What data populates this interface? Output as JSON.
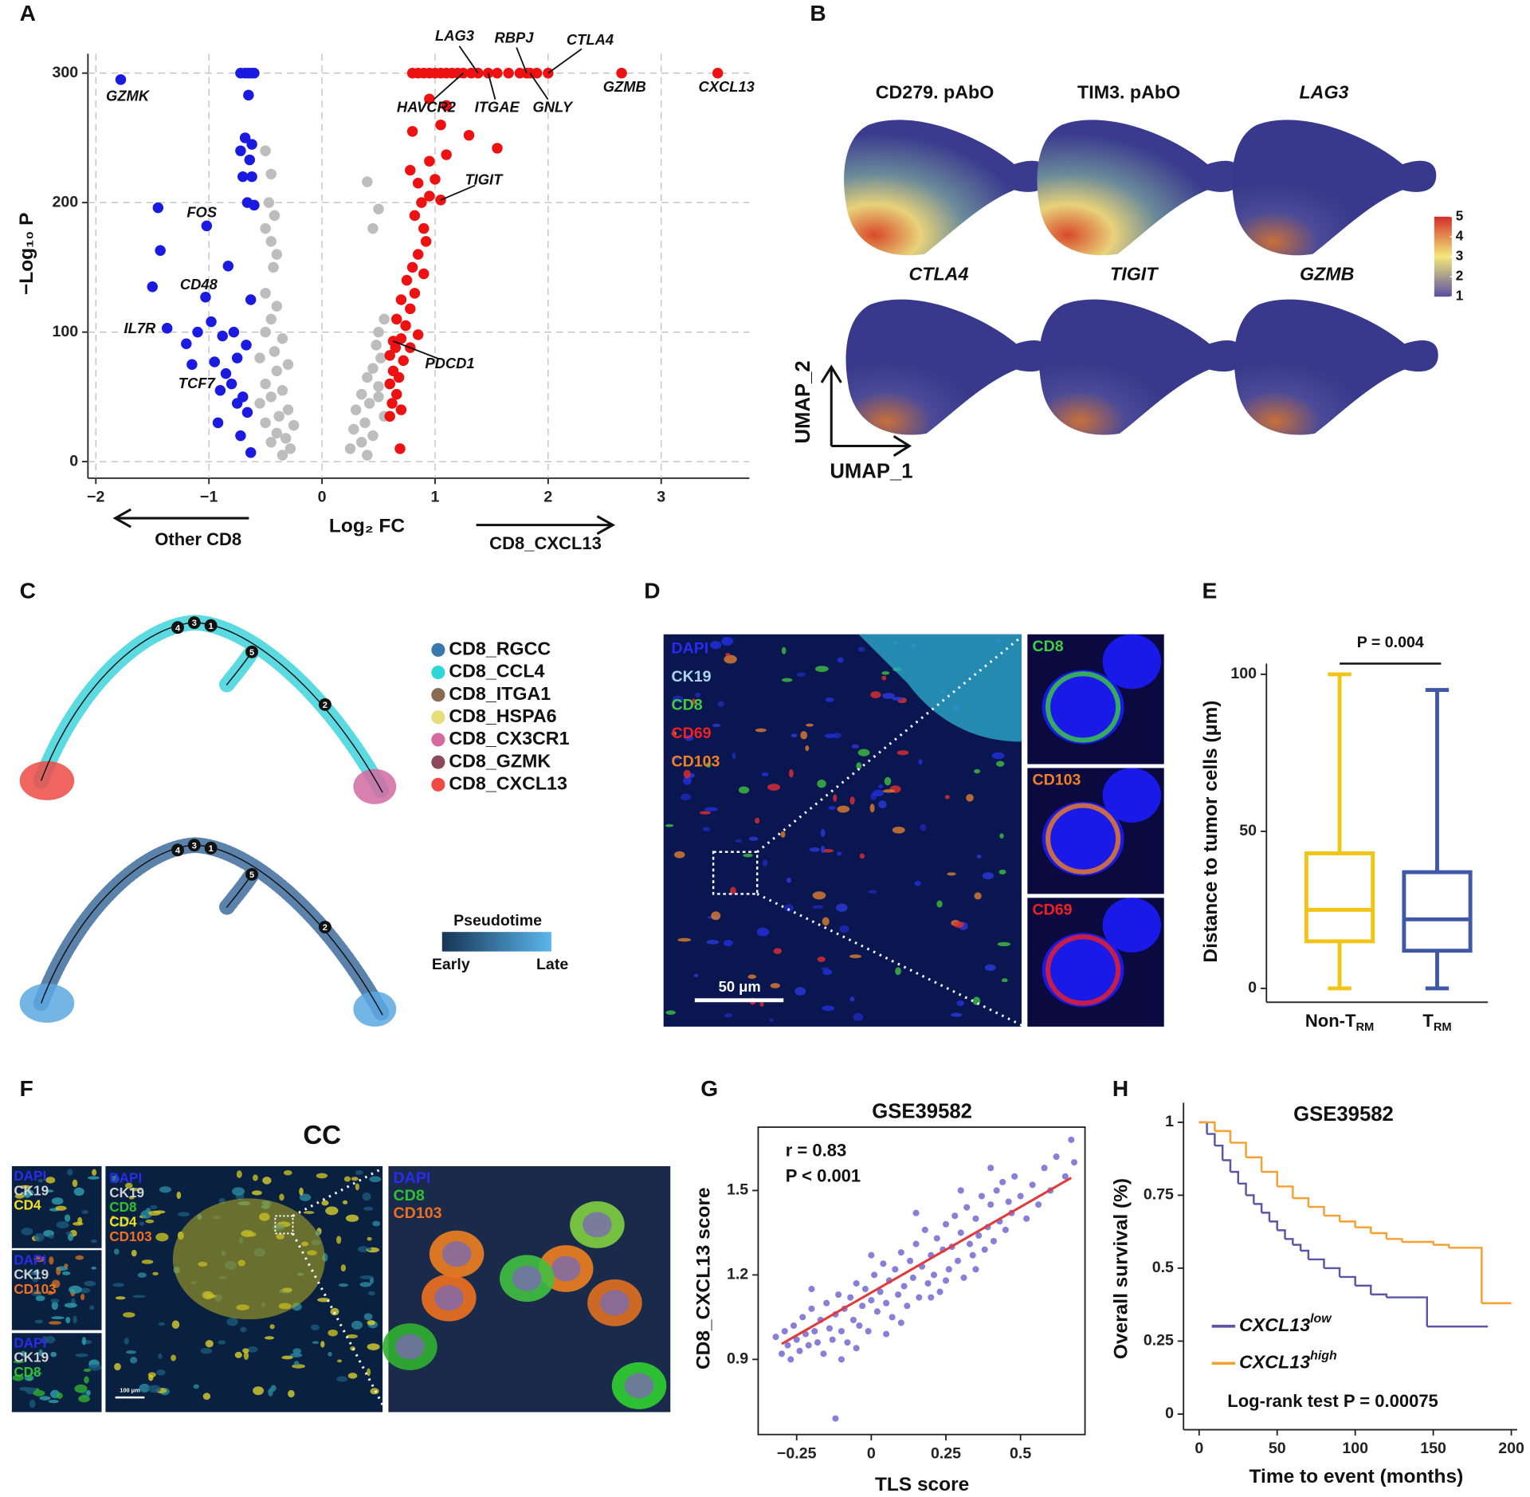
{
  "panel_labels": [
    "A",
    "B",
    "C",
    "D",
    "E",
    "F",
    "G",
    "H"
  ],
  "umap": {
    "titles": [
      "CD279. pAbO",
      "TIM3. pAbO",
      "LAG3",
      "CTLA4",
      "TIGIT",
      "GZMB"
    ],
    "colorbar_ticks": [
      1,
      2,
      3,
      4,
      5
    ],
    "colorbar_colors": [
      "#5a4fa0",
      "#f4e87a",
      "#d0302a"
    ],
    "xlabel": "UMAP_1",
    "ylabel": "UMAP_2"
  },
  "trajectory": {
    "legend": [
      {
        "name": "CD8_RGCC",
        "color": "#3a78b0"
      },
      {
        "name": "CD8_CCL4",
        "color": "#2fd6d6"
      },
      {
        "name": "CD8_ITGA1",
        "color": "#8a6a50"
      },
      {
        "name": "CD8_HSPA6",
        "color": "#e6dc78"
      },
      {
        "name": "CD8_CX3CR1",
        "color": "#d46aa0"
      },
      {
        "name": "CD8_GZMK",
        "color": "#8a4a5a"
      },
      {
        "name": "CD8_CXCL13",
        "color": "#ef4a44"
      }
    ],
    "nodes": [
      1,
      2,
      3,
      4,
      5
    ],
    "pseudotime_title": "Pseudotime",
    "pseudotime_low": "Early",
    "pseudotime_high": "Late",
    "pseudotime_colors": [
      "#173454",
      "#5ab6ec"
    ]
  },
  "microscopy_d": {
    "channels": [
      {
        "name": "DAPI",
        "color": "#2a2af0"
      },
      {
        "name": "CK19",
        "color": "#a8d8e8"
      },
      {
        "name": "CD8",
        "color": "#3fce3f"
      },
      {
        "name": "CD69",
        "color": "#f02020"
      },
      {
        "name": "CD103",
        "color": "#f08020"
      }
    ],
    "scale_bar": "50 μm",
    "insets": [
      {
        "name": "CD8",
        "color": "#3fce3f"
      },
      {
        "name": "CD103",
        "color": "#f08020"
      },
      {
        "name": "CD69",
        "color": "#f02020"
      }
    ]
  },
  "microscopy_f": {
    "title": "CC",
    "small_panels": [
      [
        {
          "name": "DAPI",
          "color": "#2a2af0"
        },
        {
          "name": "CK19",
          "color": "#d0d0d0"
        },
        {
          "name": "CD4",
          "color": "#f0e020"
        }
      ],
      [
        {
          "name": "DAPI",
          "color": "#2a2af0"
        },
        {
          "name": "CK19",
          "color": "#d0d0d0"
        },
        {
          "name": "CD103",
          "color": "#f07020"
        }
      ],
      [
        {
          "name": "DAPI",
          "color": "#2a2af0"
        },
        {
          "name": "CK19",
          "color": "#d0d0d0"
        },
        {
          "name": "CD8",
          "color": "#30c030"
        }
      ]
    ],
    "main_channels": [
      {
        "name": "DAPI",
        "color": "#2a2af0"
      },
      {
        "name": "CK19",
        "color": "#d0d0d0"
      },
      {
        "name": "CD8",
        "color": "#30c030"
      },
      {
        "name": "CD4",
        "color": "#f0e020"
      },
      {
        "name": "CD103",
        "color": "#f07020"
      }
    ],
    "zoom_channels": [
      {
        "name": "DAPI",
        "color": "#2a2af0"
      },
      {
        "name": "CD8",
        "color": "#30c030"
      },
      {
        "name": "CD103",
        "color": "#f07020"
      }
    ],
    "scale_bar": "100 μm"
  },
  "chart_data": [
    {
      "type": "scatter",
      "xlabel": "Log₂ FC",
      "ylabel": "−Log₁₀ P",
      "arrow_labels": [
        "Other CD8",
        "CD8_CXCL13"
      ],
      "xlim": [
        -2.07,
        3.78
      ],
      "ylim": [
        -12.8,
        315
      ],
      "xticks": [
        {
          "value": -2,
          "label": "−2"
        },
        {
          "value": -1,
          "label": "−1"
        },
        0,
        1,
        2,
        3
      ],
      "yticks": [
        0,
        100,
        200,
        300
      ],
      "grid": true,
      "series": [
        {
          "color": "#1a1ae0",
          "x": [
            -1.78,
            -0.72,
            -0.68,
            -0.65,
            -0.62,
            -0.6,
            -0.65,
            -0.68,
            -0.62,
            -0.72,
            -0.64,
            -0.7,
            -0.62,
            -0.66,
            -0.6,
            -1.45,
            -1.02,
            -1.43,
            -0.83,
            -1.5,
            -1.03,
            -0.63,
            -0.98,
            -1.37,
            -1.1,
            -0.78,
            -0.88,
            -1.2,
            -0.67,
            -0.75,
            -0.95,
            -1.15,
            -0.85,
            -0.8,
            -0.9,
            -0.7,
            -0.75,
            -0.66,
            -0.92,
            -0.72,
            -0.63
          ],
          "values": [
            295,
            300,
            300,
            300,
            300,
            300,
            283,
            250,
            245,
            240,
            233,
            220,
            220,
            200,
            198,
            196,
            182,
            163,
            151,
            135,
            127,
            125,
            108,
            103,
            100,
            100,
            97,
            91,
            90,
            80,
            77,
            75,
            68,
            60,
            55,
            50,
            45,
            38,
            30,
            20,
            7
          ]
        },
        {
          "color": "#bdbdbd",
          "x": [
            -0.5,
            -0.45,
            -0.47,
            -0.42,
            -0.5,
            -0.45,
            -0.4,
            -0.43,
            -0.5,
            -0.4,
            -0.45,
            -0.5,
            -0.35,
            -0.42,
            -0.55,
            -0.3,
            -0.4,
            -0.5,
            -0.35,
            -0.45,
            -0.55,
            -0.3,
            -0.38,
            -0.5,
            -0.25,
            -0.4,
            -0.32,
            -0.45,
            -0.28,
            -0.35,
            0.4,
            0.5,
            0.45,
            0.55,
            0.5,
            0.48,
            0.52,
            0.45,
            0.4,
            0.5,
            0.35,
            0.42,
            0.3,
            0.55,
            0.38,
            0.28,
            0.45,
            0.35,
            0.25,
            0.4,
            0.5,
            0.6
          ],
          "values": [
            240,
            222,
            200,
            190,
            180,
            170,
            160,
            150,
            130,
            120,
            110,
            100,
            95,
            85,
            80,
            75,
            70,
            60,
            55,
            50,
            45,
            40,
            35,
            30,
            28,
            22,
            18,
            15,
            10,
            5,
            216,
            195,
            180,
            110,
            100,
            90,
            80,
            72,
            65,
            58,
            52,
            45,
            40,
            35,
            30,
            25,
            20,
            15,
            10,
            5,
            50,
            60
          ]
        },
        {
          "color": "#ee1111",
          "x": [
            0.8,
            0.85,
            0.9,
            0.95,
            1.0,
            1.05,
            1.1,
            1.15,
            1.2,
            1.25,
            1.32,
            1.38,
            1.47,
            1.55,
            1.65,
            1.75,
            1.81,
            1.84,
            1.9,
            2.0,
            2.65,
            3.5,
            0.95,
            1.1,
            0.8,
            1.05,
            1.3,
            1.55,
            1.1,
            0.95,
            0.78,
            0.85,
            1.0,
            0.88,
            0.95,
            1.05,
            0.82,
            0.9,
            0.92,
            0.85,
            0.8,
            0.9,
            0.75,
            0.82,
            0.7,
            0.78,
            0.66,
            0.74,
            0.63,
            0.7,
            0.65,
            0.6,
            0.72,
            0.63,
            0.68,
            0.6,
            0.66,
            0.62,
            0.7,
            0.6,
            0.69,
            0.85,
            0.78
          ],
          "values": [
            300,
            300,
            300,
            300,
            300,
            300,
            300,
            300,
            300,
            300,
            300,
            300,
            300,
            300,
            300,
            300,
            300,
            300,
            300,
            300,
            300,
            300,
            280,
            275,
            255,
            260,
            252,
            242,
            237,
            232,
            225,
            215,
            218,
            200,
            205,
            202,
            190,
            180,
            170,
            160,
            150,
            145,
            140,
            130,
            125,
            118,
            110,
            105,
            93,
            95,
            88,
            82,
            78,
            70,
            65,
            60,
            52,
            45,
            40,
            35,
            10,
            98,
            88
          ]
        }
      ],
      "annotations": [
        {
          "text": "GZMK",
          "x": -1.78,
          "y": 295
        },
        {
          "text": "FOS",
          "x": -1.02,
          "y": 182
        },
        {
          "text": "CD48",
          "x": -1.03,
          "y": 127
        },
        {
          "text": "IL7R",
          "x": -1.37,
          "y": 103
        },
        {
          "text": "TCF7",
          "x": -0.85,
          "y": 68
        },
        {
          "text": "LAG3",
          "x": 1.38,
          "y": 300
        },
        {
          "text": "RBPJ",
          "x": 1.81,
          "y": 300
        },
        {
          "text": "CTLA4",
          "x": 2.0,
          "y": 300
        },
        {
          "text": "HAVCR2",
          "x": 1.25,
          "y": 300
        },
        {
          "text": "ITGAE",
          "x": 1.47,
          "y": 300
        },
        {
          "text": "GNLY",
          "x": 1.84,
          "y": 300
        },
        {
          "text": "GZMB",
          "x": 2.65,
          "y": 300
        },
        {
          "text": "CXCL13",
          "x": 3.5,
          "y": 300
        },
        {
          "text": "TIGIT",
          "x": 1.05,
          "y": 202
        },
        {
          "text": "PDCD1",
          "x": 0.63,
          "y": 93
        }
      ]
    },
    {
      "type": "box",
      "ylabel": "Distance to tumor cells (μm)",
      "categories": [
        "Non-T",
        "T"
      ],
      "category_subscripts": [
        "RM",
        "RM"
      ],
      "colors": [
        "#f2c418",
        "#3f58a8"
      ],
      "min": [
        0,
        0
      ],
      "q1": [
        15,
        12
      ],
      "median": [
        25,
        22
      ],
      "q3": [
        43,
        37
      ],
      "max": [
        100,
        95
      ],
      "ylim": [
        -4.4,
        103.4
      ],
      "yticks": [
        0,
        50,
        100
      ],
      "annotation": "P = 0.004"
    },
    {
      "type": "scatter",
      "title": "GSE39582",
      "xlabel": "TLS score",
      "ylabel": "CD8_CXCL13 score",
      "annotations_text": [
        "r = 0.83",
        "P < 0.001"
      ],
      "xlim": [
        -0.379,
        0.716
      ],
      "ylim": [
        0.633,
        1.725
      ],
      "xticks": [
        {
          "value": -0.25,
          "label": "−0.25"
        },
        0,
        0.25,
        0.5
      ],
      "yticks": [
        0.9,
        1.2,
        1.5
      ],
      "series": [
        {
          "color": "#7b72d4",
          "x": [
            -0.32,
            -0.3,
            -0.29,
            -0.28,
            -0.27,
            -0.26,
            -0.25,
            -0.24,
            -0.23,
            -0.22,
            -0.21,
            -0.2,
            -0.19,
            -0.18,
            -0.17,
            -0.16,
            -0.15,
            -0.14,
            -0.13,
            -0.12,
            -0.12,
            -0.11,
            -0.1,
            -0.09,
            -0.08,
            -0.07,
            -0.06,
            -0.05,
            -0.04,
            -0.03,
            -0.02,
            -0.01,
            0,
            0.01,
            0.02,
            0.03,
            0.04,
            0.05,
            0.06,
            0.07,
            0.08,
            0.09,
            0.1,
            0.11,
            0.12,
            0.13,
            0.14,
            0.15,
            0.16,
            0.17,
            0.18,
            0.19,
            0.2,
            0.21,
            0.22,
            0.23,
            0.24,
            0.25,
            0.26,
            0.27,
            0.28,
            0.29,
            0.3,
            0.31,
            0.32,
            0.33,
            0.34,
            0.35,
            0.36,
            0.37,
            0.38,
            0.39,
            0.4,
            0.41,
            0.42,
            0.43,
            0.44,
            0.45,
            0.46,
            0.47,
            0.48,
            0.5,
            0.52,
            0.54,
            0.56,
            0.58,
            0.6,
            0.62,
            0.65,
            0.67,
            0.68,
            -0.05,
            0,
            0.05,
            0.1,
            0.15,
            0.2,
            0.25,
            0.3,
            -0.2,
            -0.1,
            0.35,
            0.4
          ],
          "values": [
            0.98,
            0.92,
            1.0,
            0.95,
            0.9,
            1.02,
            0.97,
            0.93,
            1.05,
            0.99,
            0.95,
            1.08,
            1.0,
            0.96,
            1.04,
            0.92,
            1.1,
            1.01,
            0.97,
            0.69,
            1.06,
            1.13,
            1.0,
            1.08,
            0.96,
            1.12,
            1.04,
            1.17,
            1.02,
            1.09,
            1.15,
            1.0,
            1.11,
            1.2,
            1.07,
            1.14,
            1.24,
            1.1,
            1.18,
            1.05,
            1.22,
            1.13,
            1.28,
            1.16,
            1.09,
            1.25,
            1.19,
            1.31,
            1.12,
            1.23,
            1.36,
            1.17,
            1.27,
            1.2,
            1.33,
            1.14,
            1.29,
            1.38,
            1.22,
            1.3,
            1.41,
            1.25,
            1.35,
            1.19,
            1.44,
            1.31,
            1.27,
            1.4,
            1.34,
            1.48,
            1.29,
            1.37,
            1.45,
            1.32,
            1.5,
            1.39,
            1.53,
            1.36,
            1.46,
            1.42,
            1.55,
            1.48,
            1.4,
            1.52,
            1.45,
            1.58,
            1.5,
            1.62,
            1.55,
            1.68,
            1.6,
            0.94,
            1.27,
            0.99,
            1.03,
            1.42,
            1.12,
            1.18,
            1.5,
            1.15,
            0.9,
            1.22,
            1.58
          ]
        }
      ],
      "fit": {
        "color": "#e03a3a",
        "x": [
          -0.3,
          0.67
        ],
        "values": [
          0.955,
          1.545
        ]
      }
    },
    {
      "type": "line",
      "step": "post",
      "title": "GSE39582",
      "xlabel": "Time to event (months)",
      "ylabel": "Overall survival (%)",
      "annotation": "Log-rank test P = 0.00075",
      "xlim": [
        -10,
        203.75
      ],
      "ylim": [
        -0.0535,
        1.067
      ],
      "xticks": [
        0,
        50,
        100,
        150,
        200
      ],
      "yticks": [
        0,
        0.25,
        0.5,
        0.75,
        1
      ],
      "series": [
        {
          "name": "CXCL13",
          "superscript": "low",
          "color": "#5a55a5",
          "x": [
            0,
            5,
            10,
            15,
            20,
            25,
            30,
            35,
            40,
            45,
            50,
            55,
            60,
            65,
            70,
            80,
            90,
            100,
            110,
            120,
            145,
            146,
            185
          ],
          "values": [
            1,
            0.96,
            0.92,
            0.87,
            0.83,
            0.79,
            0.75,
            0.72,
            0.69,
            0.66,
            0.63,
            0.6,
            0.58,
            0.56,
            0.53,
            0.5,
            0.47,
            0.44,
            0.41,
            0.4,
            0.4,
            0.3,
            0.3
          ]
        },
        {
          "name": "CXCL13",
          "superscript": "high",
          "color": "#f5a030",
          "x": [
            0,
            10,
            20,
            30,
            40,
            50,
            60,
            70,
            80,
            90,
            100,
            110,
            120,
            130,
            140,
            150,
            160,
            170,
            180,
            181,
            200
          ],
          "values": [
            1,
            0.97,
            0.93,
            0.88,
            0.83,
            0.78,
            0.74,
            0.71,
            0.68,
            0.66,
            0.64,
            0.62,
            0.6,
            0.59,
            0.59,
            0.58,
            0.57,
            0.57,
            0.57,
            0.38,
            0.38
          ]
        }
      ]
    }
  ]
}
